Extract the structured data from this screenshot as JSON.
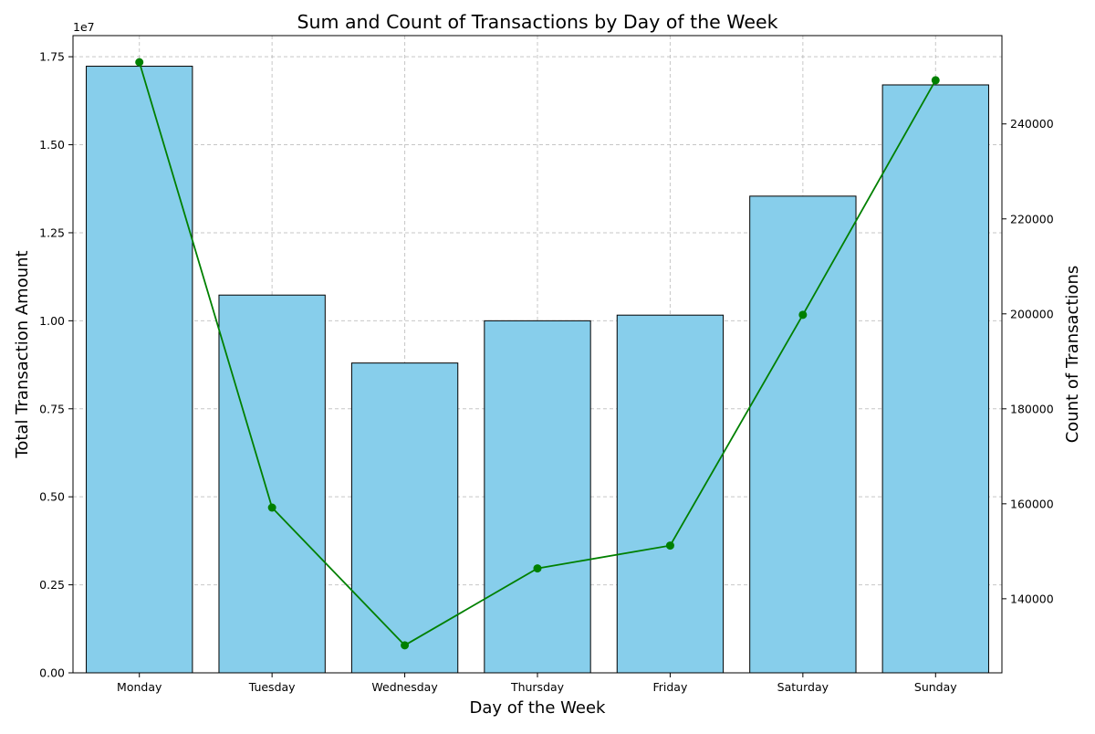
{
  "chart_data": {
    "type": "bar",
    "title": "Sum and Count of Transactions by Day of the Week",
    "xlabel": "Day of the Week",
    "ylabel": "Total Transaction Amount",
    "y2label": "Count of Transactions",
    "categories": [
      "Monday",
      "Tuesday",
      "Wednesday",
      "Thursday",
      "Friday",
      "Saturday",
      "Sunday"
    ],
    "series": [
      {
        "type": "bar",
        "axis": "left",
        "values": [
          17230000,
          10730000,
          8800000,
          10000000,
          10160000,
          13540000,
          16700000
        ]
      },
      {
        "type": "line",
        "axis": "right",
        "values": [
          253000,
          159200,
          130200,
          146400,
          151200,
          199800,
          249200
        ]
      }
    ],
    "ylim": [
      0,
      18100000
    ],
    "y2lim": [
      124400,
      258600
    ],
    "y_ticks": [
      0,
      2500000,
      5000000,
      7500000,
      10000000,
      12500000,
      15000000,
      17500000
    ],
    "y_tick_labels": [
      "0.00",
      "0.25",
      "0.50",
      "0.75",
      "1.00",
      "1.25",
      "1.50",
      "1.75"
    ],
    "y_offset_label": "1e7",
    "y2_ticks": [
      140000,
      160000,
      180000,
      200000,
      220000,
      240000
    ],
    "y2_tick_labels": [
      "140000",
      "160000",
      "180000",
      "200000",
      "220000",
      "240000"
    ],
    "grid": true,
    "colors": {
      "bar_fill": "#87ceeb",
      "bar_edge": "#000000",
      "line": "#008000",
      "marker": "#008000"
    }
  }
}
